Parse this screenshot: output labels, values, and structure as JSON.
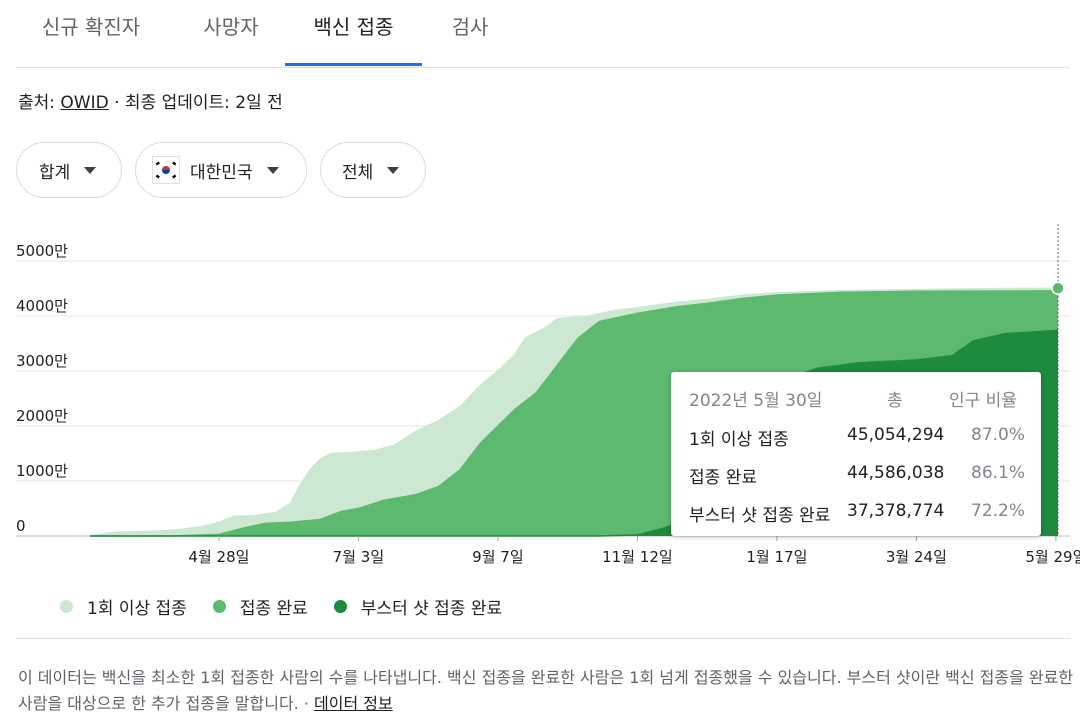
{
  "tabs": [
    {
      "label": "신규 확진자",
      "active": false
    },
    {
      "label": "사망자",
      "active": false
    },
    {
      "label": "백신 접종",
      "active": true
    },
    {
      "label": "검사",
      "active": false
    }
  ],
  "source": {
    "prefix": "출처: ",
    "link": "OWID",
    "suffix": " · 최종 업데이트: 2일 전"
  },
  "filters": {
    "metric": "합계",
    "country": "대한민국",
    "flag_icon": "south-korea-flag-icon",
    "scope": "전체"
  },
  "colors": {
    "at_least_one": "#cce8d2",
    "fully": "#5cb96e",
    "booster": "#1e8a3d",
    "marker": "#5cb96e"
  },
  "chart_data": {
    "type": "area",
    "title": "",
    "xlabel": "",
    "ylabel": "",
    "x_start": "2021-02-26",
    "x_end": "2022-05-30",
    "x_ticks": [
      {
        "date": "2021-04-28",
        "label": "4월 28일"
      },
      {
        "date": "2021-07-03",
        "label": "7월 3일"
      },
      {
        "date": "2021-09-07",
        "label": "9월 7일"
      },
      {
        "date": "2021-11-12",
        "label": "11월 12일"
      },
      {
        "date": "2022-01-17",
        "label": "1월 17일"
      },
      {
        "date": "2022-03-24",
        "label": "3월 24일"
      },
      {
        "date": "2022-05-29",
        "label": "5월 29일"
      }
    ],
    "y_ticks": [
      {
        "value": 0,
        "label": "0"
      },
      {
        "value": 10000000,
        "label": "1000만"
      },
      {
        "value": 20000000,
        "label": "2000만"
      },
      {
        "value": 30000000,
        "label": "3000만"
      },
      {
        "value": 40000000,
        "label": "4000만"
      },
      {
        "value": 50000000,
        "label": "5000만"
      }
    ],
    "ylim": [
      0,
      50000000
    ],
    "grid": true,
    "series": [
      {
        "name": "1회 이상 접종",
        "values": [
          [
            "2021-02-26",
            0
          ],
          [
            "2021-03-10",
            700000
          ],
          [
            "2021-03-20",
            800000
          ],
          [
            "2021-03-31",
            900000
          ],
          [
            "2021-04-10",
            1200000
          ],
          [
            "2021-04-20",
            1700000
          ],
          [
            "2021-04-28",
            2500000
          ],
          [
            "2021-05-05",
            3600000
          ],
          [
            "2021-05-15",
            3700000
          ],
          [
            "2021-05-25",
            4300000
          ],
          [
            "2021-06-01",
            6000000
          ],
          [
            "2021-06-05",
            9000000
          ],
          [
            "2021-06-10",
            12000000
          ],
          [
            "2021-06-15",
            14000000
          ],
          [
            "2021-06-20",
            15000000
          ],
          [
            "2021-06-30",
            15200000
          ],
          [
            "2021-07-10",
            15500000
          ],
          [
            "2021-07-20",
            16500000
          ],
          [
            "2021-07-30",
            19000000
          ],
          [
            "2021-08-10",
            21000000
          ],
          [
            "2021-08-20",
            23500000
          ],
          [
            "2021-08-30",
            27500000
          ],
          [
            "2021-09-07",
            30000000
          ],
          [
            "2021-09-15",
            33000000
          ],
          [
            "2021-09-20",
            36000000
          ],
          [
            "2021-09-30",
            38000000
          ],
          [
            "2021-10-05",
            39500000
          ],
          [
            "2021-10-20",
            40000000
          ],
          [
            "2021-11-01",
            41000000
          ],
          [
            "2021-11-12",
            41500000
          ],
          [
            "2021-12-01",
            42500000
          ],
          [
            "2021-12-15",
            43000000
          ],
          [
            "2022-01-01",
            43800000
          ],
          [
            "2022-01-17",
            44200000
          ],
          [
            "2022-02-15",
            44600000
          ],
          [
            "2022-03-24",
            44800000
          ],
          [
            "2022-04-20",
            44950000
          ],
          [
            "2022-05-30",
            45054294
          ]
        ]
      },
      {
        "name": "접종 완료",
        "values": [
          [
            "2021-02-26",
            0
          ],
          [
            "2021-04-05",
            0
          ],
          [
            "2021-04-28",
            300000
          ],
          [
            "2021-05-10",
            1500000
          ],
          [
            "2021-05-20",
            2300000
          ],
          [
            "2021-06-01",
            2500000
          ],
          [
            "2021-06-15",
            3000000
          ],
          [
            "2021-06-25",
            4500000
          ],
          [
            "2021-07-03",
            5000000
          ],
          [
            "2021-07-15",
            6500000
          ],
          [
            "2021-07-30",
            7500000
          ],
          [
            "2021-08-10",
            9000000
          ],
          [
            "2021-08-20",
            12000000
          ],
          [
            "2021-08-30",
            17000000
          ],
          [
            "2021-09-07",
            20000000
          ],
          [
            "2021-09-15",
            23000000
          ],
          [
            "2021-09-25",
            26000000
          ],
          [
            "2021-10-05",
            31000000
          ],
          [
            "2021-10-15",
            36000000
          ],
          [
            "2021-10-25",
            39000000
          ],
          [
            "2021-11-12",
            40500000
          ],
          [
            "2021-12-01",
            41700000
          ],
          [
            "2021-12-15",
            42300000
          ],
          [
            "2022-01-01",
            43200000
          ],
          [
            "2022-01-17",
            43800000
          ],
          [
            "2022-02-15",
            44300000
          ],
          [
            "2022-03-24",
            44500000
          ],
          [
            "2022-05-30",
            44586038
          ]
        ]
      },
      {
        "name": "부스터 샷 접종 완료",
        "values": [
          [
            "2021-02-26",
            0
          ],
          [
            "2021-10-25",
            0
          ],
          [
            "2021-11-12",
            200000
          ],
          [
            "2021-11-25",
            1500000
          ],
          [
            "2021-12-05",
            3000000
          ],
          [
            "2021-12-15",
            8000000
          ],
          [
            "2021-12-25",
            15000000
          ],
          [
            "2022-01-05",
            22000000
          ],
          [
            "2022-01-17",
            28000000
          ],
          [
            "2022-02-05",
            30500000
          ],
          [
            "2022-02-25",
            31500000
          ],
          [
            "2022-03-24",
            32000000
          ],
          [
            "2022-04-10",
            32800000
          ],
          [
            "2022-04-20",
            35500000
          ],
          [
            "2022-05-05",
            36800000
          ],
          [
            "2022-05-30",
            37378774
          ]
        ]
      }
    ]
  },
  "tooltip": {
    "date": "2022년 5월 30일",
    "col_total": "총",
    "col_ratio": "인구 비율",
    "rows": [
      {
        "label": "1회 이상 접종",
        "total": "45,054,294",
        "ratio": "87.0%"
      },
      {
        "label": "접종 완료",
        "total": "44,586,038",
        "ratio": "86.1%"
      },
      {
        "label": "부스터 샷 접종 완료",
        "total": "37,378,774",
        "ratio": "72.2%"
      }
    ]
  },
  "legend": [
    {
      "label": "1회 이상 접종",
      "color": "#cce8d2"
    },
    {
      "label": "접종 완료",
      "color": "#5cb96e"
    },
    {
      "label": "부스터 샷 접종 완료",
      "color": "#1e8a3d"
    }
  ],
  "footnote": {
    "text": "이 데이터는 백신을 최소한 1회 접종한 사람의 수를 나타냅니다. 백신 접종을 완료한 사람은 1회 넘게 접종했을 수 있습니다. 부스터 샷이란 백신 접종을 완료한 사람을 대상으로 한 추가 접종을 말합니다.",
    "separator": " · ",
    "link": "데이터 정보"
  }
}
